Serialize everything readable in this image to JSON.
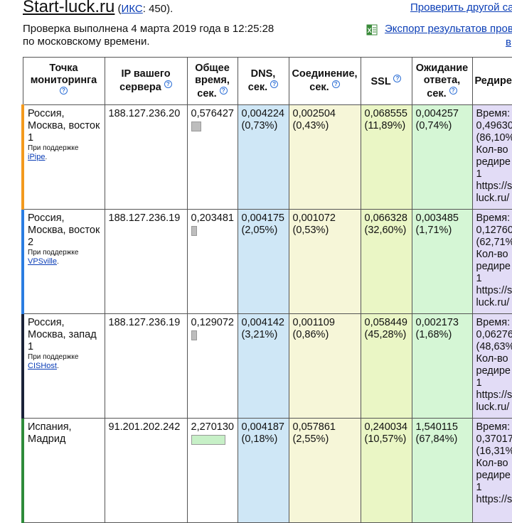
{
  "header": {
    "site_name": "Start-luck.ru",
    "iks_label": "ИКС",
    "iks_value": ": 450).",
    "iks_open": " (",
    "check_other": "Проверить другой са",
    "checked_line1": "Проверка выполнена 4 марта 2019 года в 12:25:28",
    "checked_line2": "по московскому времени.",
    "export_line1": "Экспорт результатов прове",
    "export_line2": "в"
  },
  "table": {
    "headers": [
      "Точка мониторинга",
      "IP вашего сервера",
      "Общее время, сек.",
      "DNS, сек.",
      "Соединение, сек.",
      "SSL",
      "Ожидание ответа, сек.",
      "Редире"
    ],
    "support_label": "При поддержке",
    "rows": [
      {
        "location": "Россия, Москва, восток 1",
        "provider": "iPipe",
        "ip": "188.127.236.20",
        "total": "0,576427",
        "total_fraction": 0.25,
        "dns": "0,004224",
        "dns_pct": "(0,73%)",
        "conn": "0,002504",
        "conn_pct": "(0,43%)",
        "ssl": "0,068555",
        "ssl_pct": "(11,89%)",
        "wait": "0,004257",
        "wait_pct": "(0,74%)",
        "redir_lines": [
          "Время:",
          "0,49630",
          "(86,10%",
          "Кол-во",
          "редире",
          "1",
          "https://s",
          "luck.ru/"
        ]
      },
      {
        "location": "Россия, Москва, восток 2",
        "provider": "VPSville",
        "ip": "188.127.236.19",
        "total": "0,203481",
        "total_fraction": 0.09,
        "dns": "0,004175",
        "dns_pct": "(2,05%)",
        "conn": "0,001072",
        "conn_pct": "(0,53%)",
        "ssl": "0,066328",
        "ssl_pct": "(32,60%)",
        "wait": "0,003485",
        "wait_pct": "(1,71%)",
        "redir_lines": [
          "Время:",
          "0,12760",
          "(62,71%",
          "Кол-во",
          "редире",
          "1",
          "https://s",
          "luck.ru/"
        ]
      },
      {
        "location": "Россия, Москва, запад 1",
        "provider": "CISHost",
        "ip": "188.127.236.19",
        "total": "0,129072",
        "total_fraction": 0.06,
        "dns": "0,004142",
        "dns_pct": "(3,21%)",
        "conn": "0,001109",
        "conn_pct": "(0,86%)",
        "ssl": "0,058449",
        "ssl_pct": "(45,28%)",
        "wait": "0,002173",
        "wait_pct": "(1,68%)",
        "redir_lines": [
          "Время:",
          "0,06276",
          "(48,63%",
          "Кол-во",
          "редире",
          "1",
          "https://s",
          "luck.ru/"
        ]
      },
      {
        "location": "Испания, Мадрид",
        "provider": "",
        "ip": "91.201.202.242",
        "total": "2,270130",
        "total_fraction": 1.0,
        "dns": "0,004187",
        "dns_pct": "(0,18%)",
        "conn": "0,057861",
        "conn_pct": "(2,55%)",
        "ssl": "0,240034",
        "ssl_pct": "(10,57%)",
        "wait": "1,540115",
        "wait_pct": "(67,84%)",
        "redir_lines": [
          "Время:",
          "0,37017",
          "(16,31%",
          "Кол-во",
          "редире",
          "1",
          "https://s"
        ]
      }
    ]
  },
  "colors": {
    "row_markers": [
      "#f39a1e",
      "#2a7de1",
      "#1a2238",
      "#2e8b3a"
    ]
  }
}
